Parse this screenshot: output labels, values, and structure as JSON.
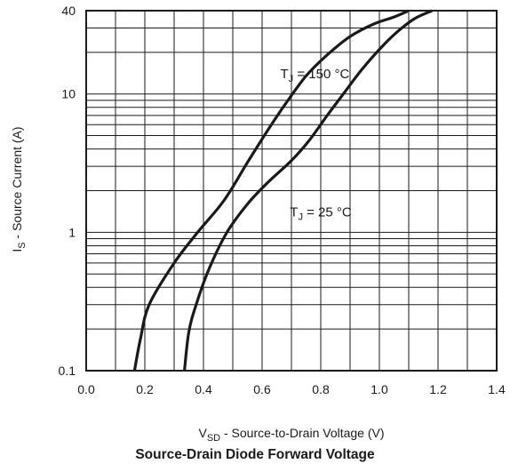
{
  "chart_data": {
    "type": "line",
    "title": "Source-Drain Diode Forward Voltage",
    "xlabel": {
      "main": "V",
      "sub": "SD",
      "rest": " - Source-to-Drain Voltage (V)"
    },
    "ylabel": {
      "main": "I",
      "sub": "S",
      "rest": " - Source Current (A)"
    },
    "x_scale": "linear",
    "y_scale": "log",
    "xlim": [
      0.0,
      1.4
    ],
    "ylim": [
      0.1,
      40
    ],
    "x_ticks": [
      "0.0",
      "0.2",
      "0.4",
      "0.6",
      "0.8",
      "1.0",
      "1.2",
      "1.4"
    ],
    "y_ticks": [
      {
        "value": 0.1,
        "label": "0.1"
      },
      {
        "value": 1,
        "label": "1"
      },
      {
        "value": 10,
        "label": "10"
      },
      {
        "value": 40,
        "label": "40"
      }
    ],
    "grid": true,
    "series": [
      {
        "name": "T_J = 150 °C",
        "label": {
          "main": "T",
          "sub": "J",
          "rest": " = 150 °C"
        },
        "x": [
          0.165,
          0.185,
          0.215,
          0.3,
          0.38,
          0.47,
          0.55,
          0.62,
          0.68,
          0.75,
          0.82,
          0.9,
          0.98,
          1.05,
          1.1
        ],
        "y": [
          0.1,
          0.17,
          0.3,
          0.6,
          1.0,
          1.7,
          3.2,
          5.5,
          8.5,
          13.5,
          19,
          26,
          32,
          36,
          40
        ]
      },
      {
        "name": "T_J = 25 °C",
        "label": {
          "main": "T",
          "sub": "J",
          "rest": " = 25 °C"
        },
        "x": [
          0.335,
          0.35,
          0.375,
          0.42,
          0.48,
          0.55,
          0.62,
          0.7,
          0.76,
          0.82,
          0.88,
          0.94,
          1.0,
          1.06,
          1.12,
          1.18
        ],
        "y": [
          0.1,
          0.19,
          0.3,
          0.55,
          1.0,
          1.6,
          2.3,
          3.3,
          4.6,
          6.9,
          10.2,
          15,
          21,
          28,
          35,
          40
        ]
      }
    ]
  }
}
